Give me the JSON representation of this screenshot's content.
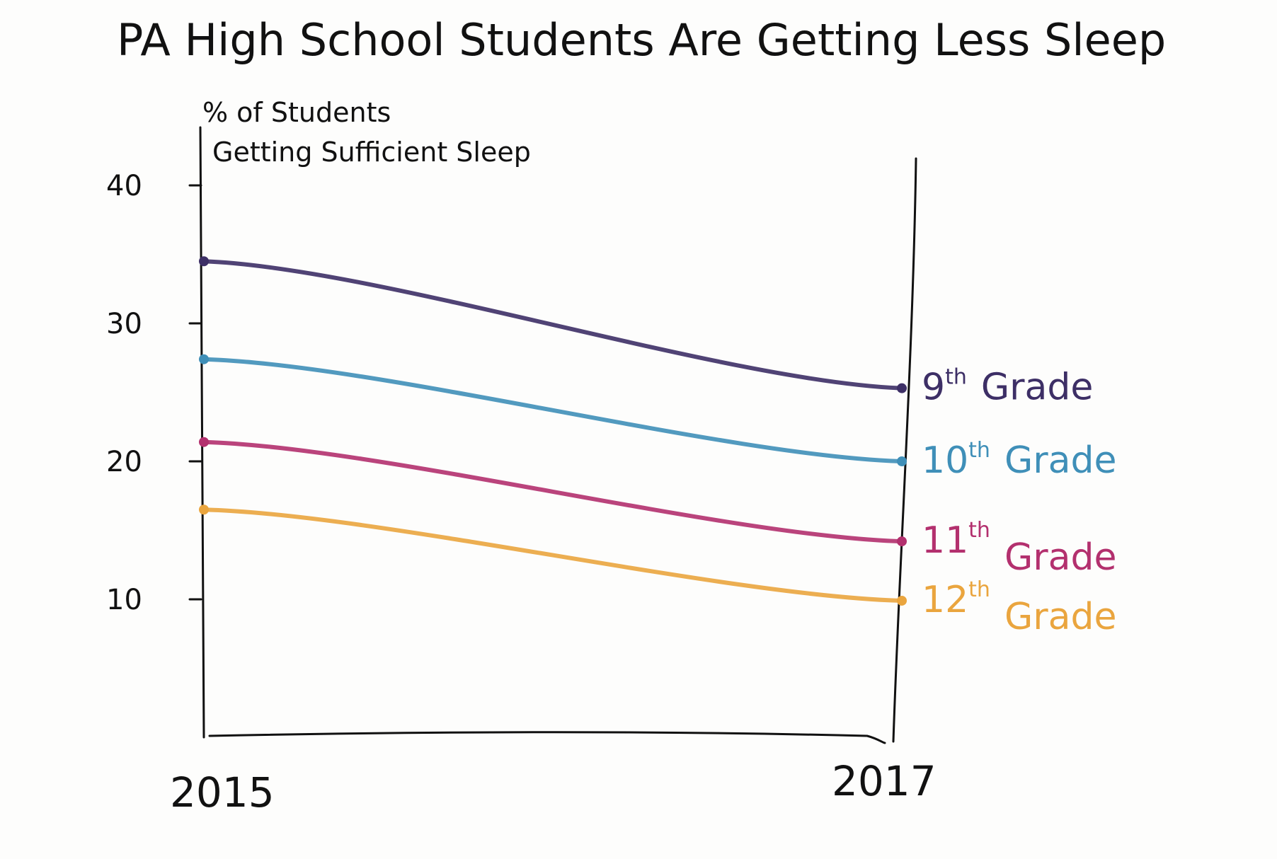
{
  "chart_data": {
    "type": "line",
    "title": "PA High School Students Are Getting Less Sleep",
    "ylabel_lines": [
      "% of Students",
      "Getting Sufficient Sleep"
    ],
    "xlabel": "",
    "x": [
      "2015",
      "2017"
    ],
    "ylim": [
      0,
      40
    ],
    "yticks": [
      10,
      20,
      30,
      40
    ],
    "ytick_labels": [
      "10",
      "20",
      "30",
      "40"
    ],
    "grid": false,
    "legend": "direct labels at right end of lines",
    "series": [
      {
        "name": "9th Grade",
        "values": [
          34.5,
          25.3
        ],
        "color": "#3d2f66"
      },
      {
        "name": "10th Grade",
        "values": [
          27.4,
          20.0
        ],
        "color": "#3f8fb8"
      },
      {
        "name": "11th Grade",
        "values": [
          21.4,
          14.2
        ],
        "color": "#b3306e"
      },
      {
        "name": "12th Grade",
        "values": [
          16.5,
          9.9
        ],
        "color": "#eaa53e"
      }
    ],
    "series_label_parts": [
      {
        "num": "9",
        "suffix": "th",
        "word": "Grade"
      },
      {
        "num": "10",
        "suffix": "th",
        "word": "Grade"
      },
      {
        "num": "11",
        "suffix": "th",
        "word": "Grade"
      },
      {
        "num": "12",
        "suffix": "th",
        "word": "Grade"
      }
    ]
  }
}
